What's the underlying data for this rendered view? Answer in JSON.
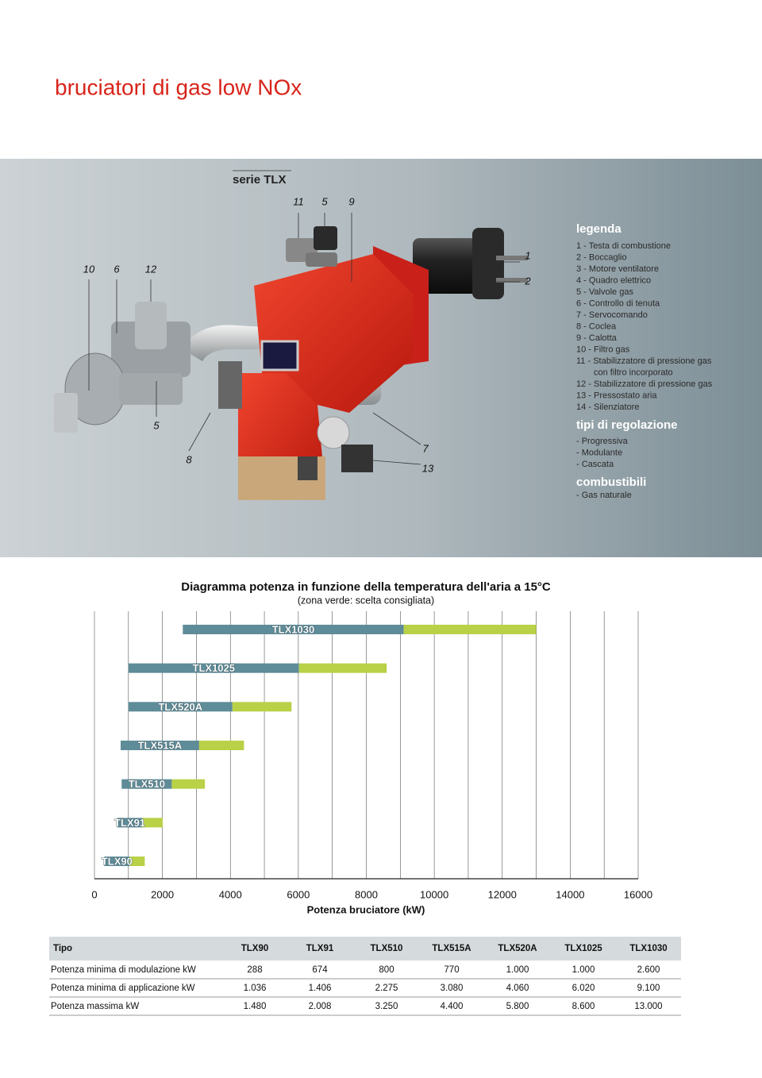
{
  "header": {
    "title": "bruciatori di gas low NOx"
  },
  "product": {
    "series": "serie TLX",
    "callouts": [
      "10",
      "6",
      "12",
      "5",
      "8",
      "7",
      "13",
      "11",
      "5",
      "9",
      "1",
      "2"
    ],
    "legend": {
      "title": "legenda",
      "items": [
        "1 - Testa di combustione",
        "2 - Boccaglio",
        "3 - Motore ventilatore",
        "4 - Quadro elettrico",
        "5 - Valvole gas",
        "6 - Controllo di tenuta",
        "7 - Servocomando",
        "8 - Coclea",
        "9 - Calotta",
        "10 - Filtro gas",
        "11 - Stabilizzatore di pressione gas",
        "con filtro incorporato",
        "12 - Stabilizzatore di pressione gas",
        "13 - Pressostato aria",
        "14 - Silenziatore"
      ]
    },
    "regulation": {
      "title": "tipi di regolazione",
      "items": [
        "- Progressiva",
        "- Modulante",
        "- Cascata"
      ]
    },
    "fuels": {
      "title": "combustibili",
      "items": [
        "- Gas naturale"
      ]
    }
  },
  "chart_data": {
    "type": "range-bar",
    "title": "Diagramma potenza in funzione della temperatura dell'aria a 15°C",
    "subtitle": "(zona verde: scelta consigliata)",
    "xlabel": "Potenza bruciatore (kW)",
    "bars": [
      {
        "label": "TLX1030",
        "min": 2600,
        "split": 9100,
        "max": 13000
      },
      {
        "label": "TLX1025",
        "min": 1000,
        "split": 6020,
        "max": 8600
      },
      {
        "label": "TLX520A",
        "min": 1000,
        "split": 4060,
        "max": 5800
      },
      {
        "label": "TLX515A",
        "min": 770,
        "split": 3080,
        "max": 4400
      },
      {
        "label": "TLX510",
        "min": 800,
        "split": 2275,
        "max": 3250
      },
      {
        "label": "TLX91",
        "min": 674,
        "split": 1406,
        "max": 2008
      },
      {
        "label": "TLX90",
        "min": 288,
        "split": 1036,
        "max": 1480
      }
    ],
    "colors": {
      "min_to_split": "#5e8c98",
      "split_to_max": "#b9d147"
    },
    "xlim": [
      0,
      16000
    ],
    "xticks": [
      0,
      2000,
      4000,
      6000,
      8000,
      10000,
      12000,
      14000,
      16000
    ],
    "minor_xticks": [
      1000,
      3000,
      5000,
      7000,
      9000,
      11000,
      13000,
      15000
    ],
    "grid": true
  },
  "table": {
    "header": [
      "Tipo",
      "TLX90",
      "TLX91",
      "TLX510",
      "TLX515A",
      "TLX520A",
      "TLX1025",
      "TLX1030"
    ],
    "rows": [
      [
        "Potenza minima di modulazione kW",
        "288",
        "674",
        "800",
        "770",
        "1.000",
        "1.000",
        "2.600"
      ],
      [
        "Potenza minima di applicazione kW",
        "1.036",
        "1.406",
        "2.275",
        "3.080",
        "4.060",
        "6.020",
        "9.100"
      ],
      [
        "Potenza massima kW",
        "1.480",
        "2.008",
        "3.250",
        "4.400",
        "5.800",
        "8.600",
        "13.000"
      ]
    ]
  }
}
